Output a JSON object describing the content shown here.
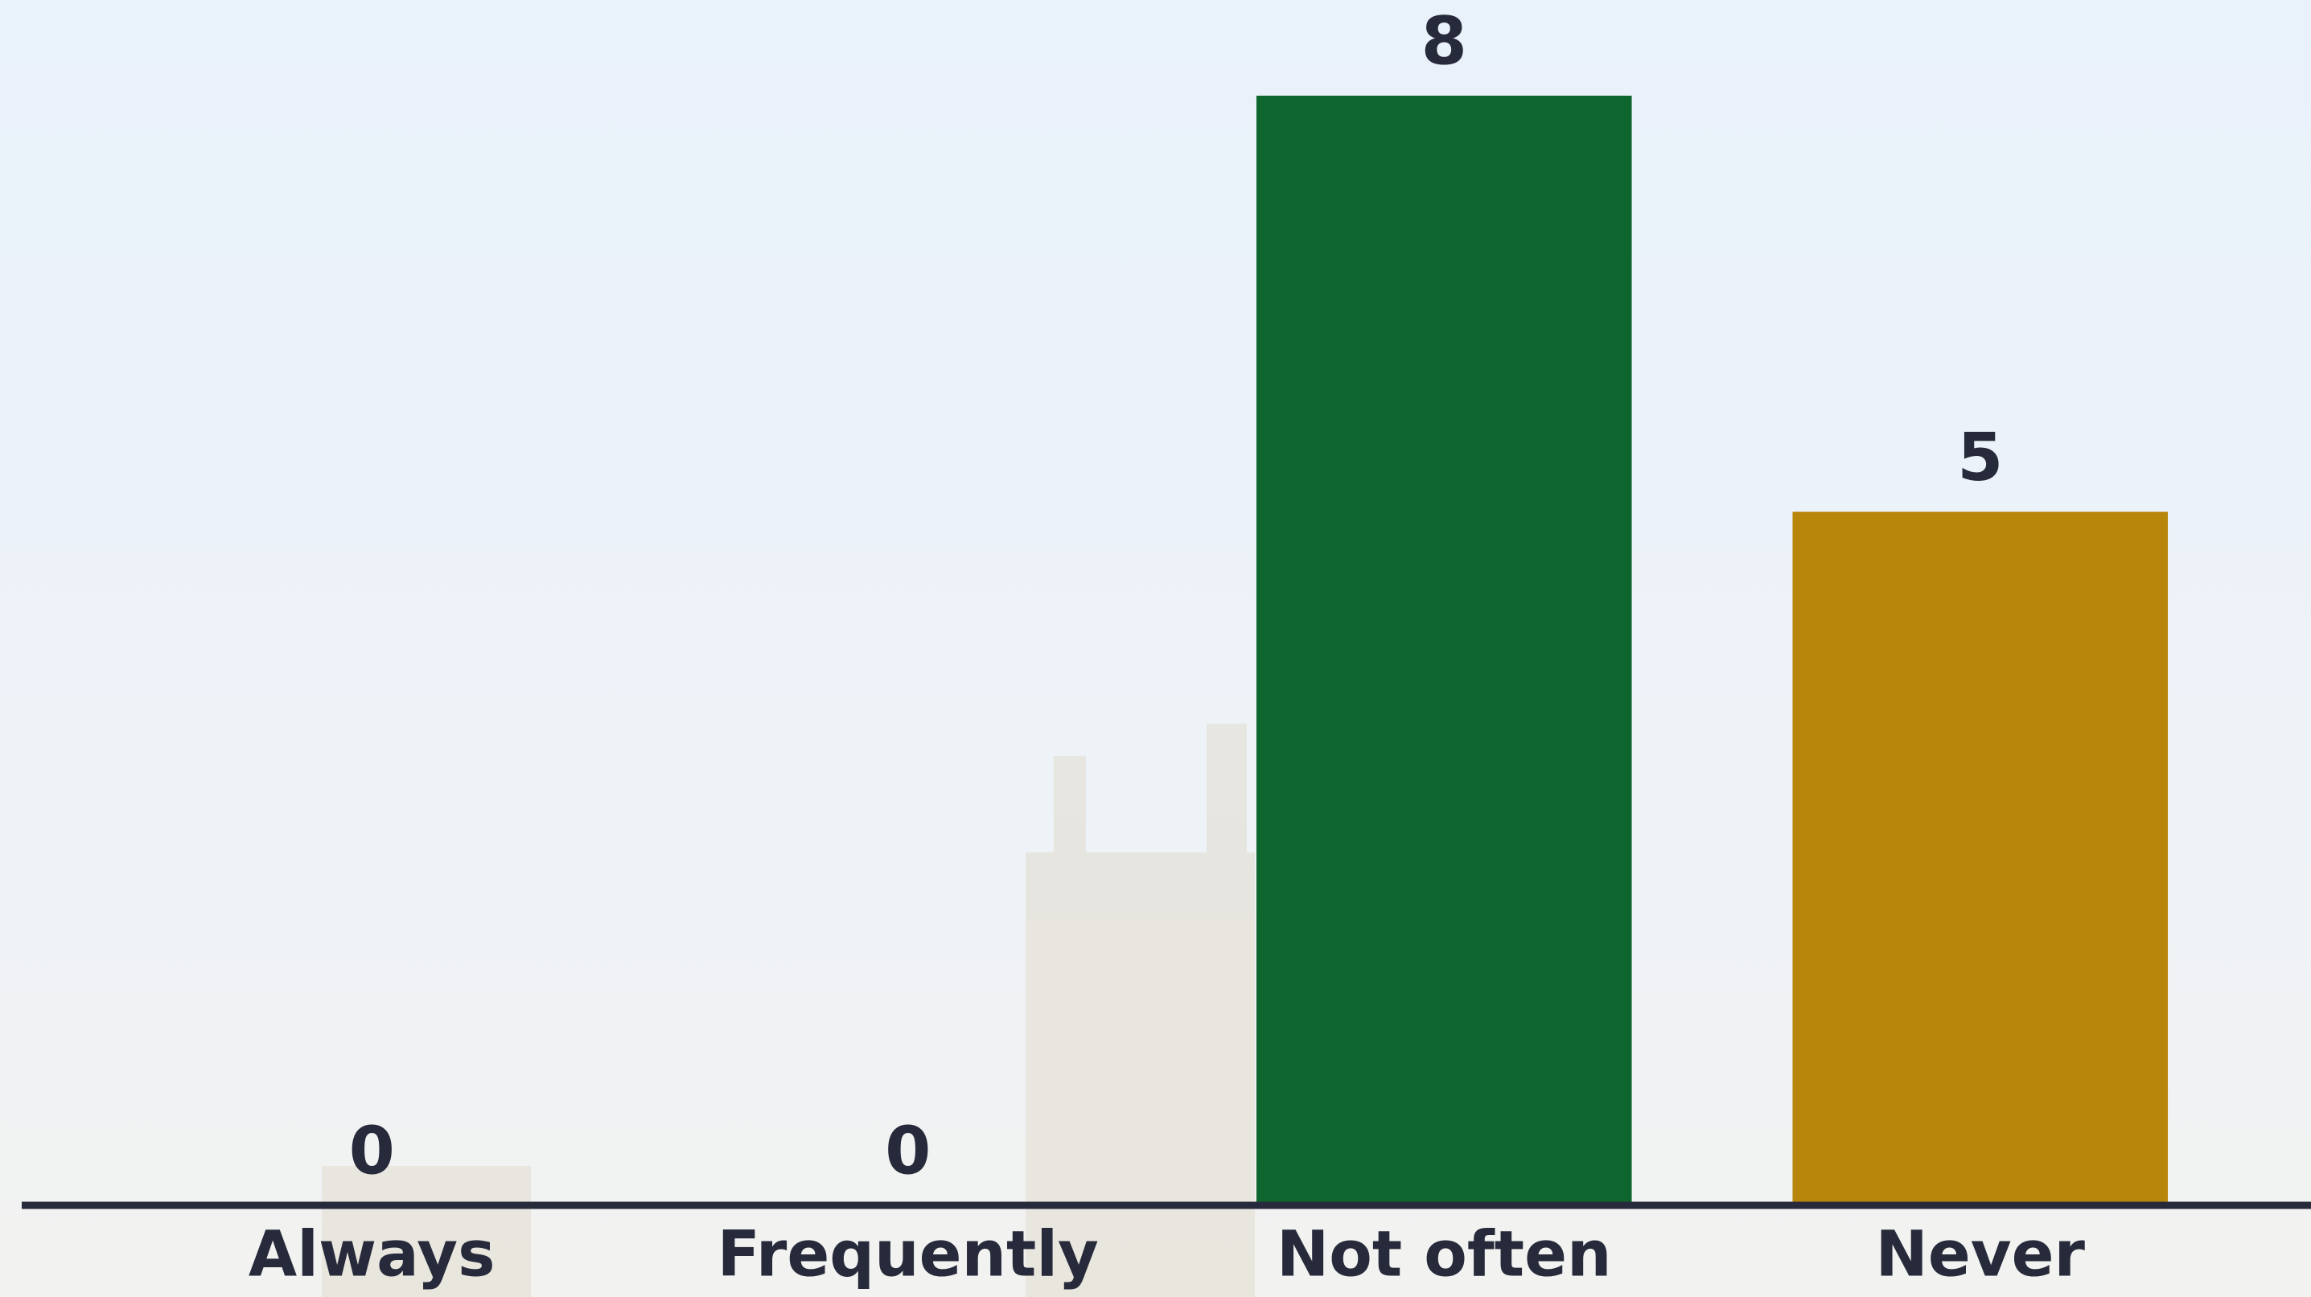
{
  "chart_data": {
    "type": "bar",
    "categories": [
      "Always",
      "Frequently",
      "Not often",
      "Never"
    ],
    "values": [
      0,
      0,
      8,
      5
    ],
    "colors": [
      "#0f652e",
      "#0f652e",
      "#0f652e",
      "#b8860b"
    ],
    "ylim": [
      0,
      8
    ]
  }
}
